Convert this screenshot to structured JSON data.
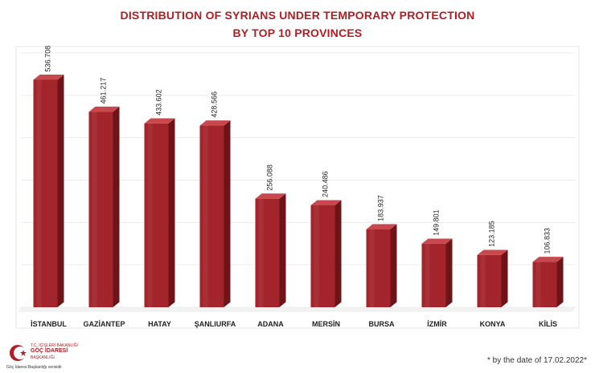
{
  "chart_data": {
    "type": "bar",
    "title_lines": [
      "DISTRIBUTION OF SYRIANS UNDER TEMPORARY PROTECTION",
      "BY TOP 10 PROVINCES"
    ],
    "categories": [
      "İSTANBUL",
      "GAZİANTEP",
      "HATAY",
      "ŞANLIURFA",
      "ADANA",
      "MERSİN",
      "BURSA",
      "İZMİR",
      "KONYA",
      "KİLİS"
    ],
    "values": [
      536708,
      461217,
      433602,
      428566,
      256088,
      240486,
      183937,
      149801,
      123185,
      106833
    ],
    "value_labels": [
      "536.708",
      "461.217",
      "433.602",
      "428.566",
      "256.088",
      "240.486",
      "183.937",
      "149.801",
      "123.185",
      "106.833"
    ],
    "ylim": [
      0,
      600000
    ],
    "grid": true,
    "colors": {
      "bar_front": "#a3252b",
      "bar_side": "#6e1418",
      "bar_top": "#c7494e",
      "title": "#b01e23"
    }
  },
  "logo": {
    "line1": "T.C.",
    "line1b": "İÇİŞLERİ BAKANLIĞI",
    "brand": "GÖÇ İDARESİ",
    "line2": "BAŞKANLIĞI",
    "caption": "Göç İdaresi Başkanlığı verisidir"
  },
  "footnote": "* by the date of 17.02.2022*"
}
